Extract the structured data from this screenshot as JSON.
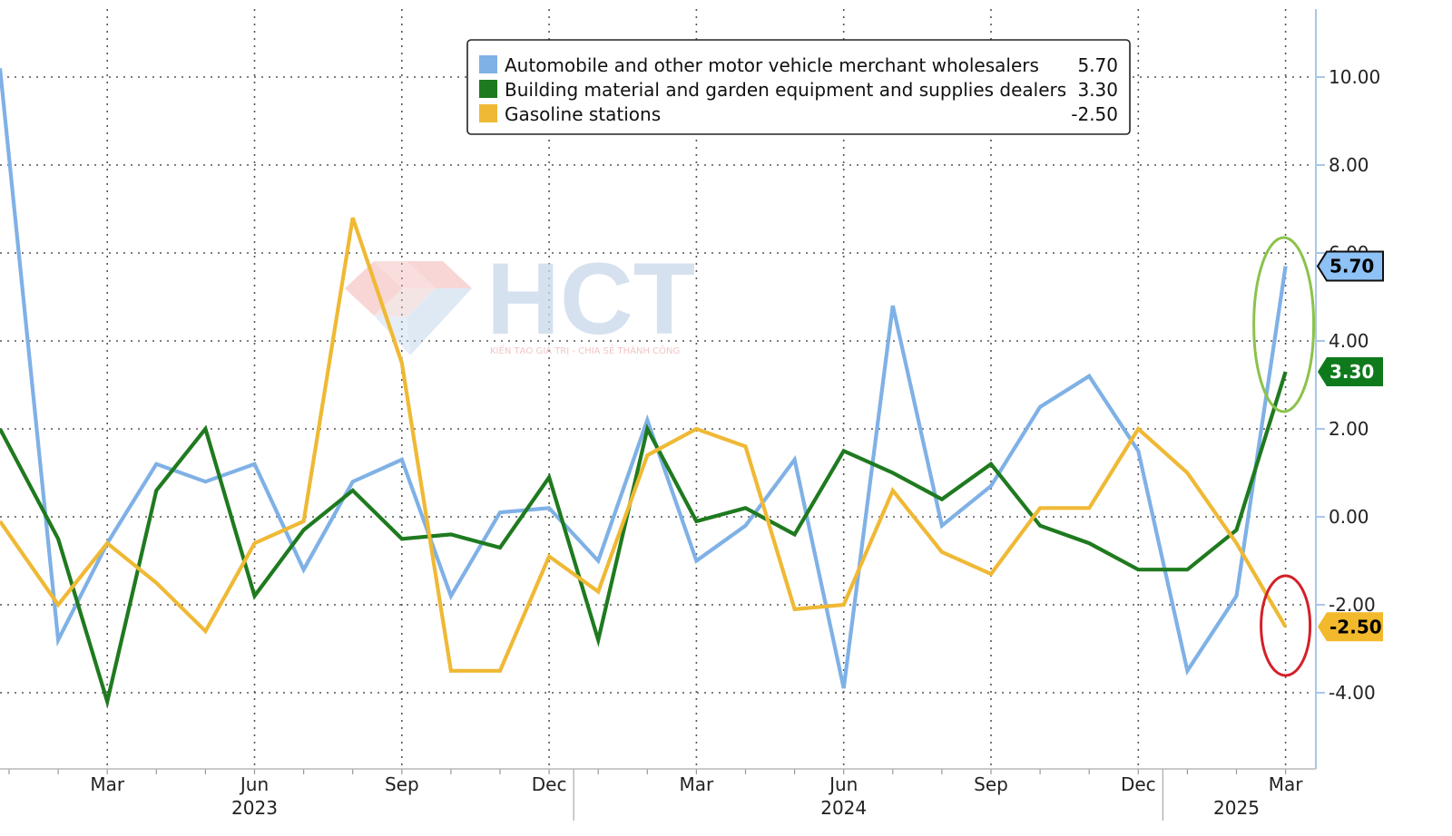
{
  "chart_data": {
    "type": "line",
    "title": "",
    "xlabel": "",
    "ylabel": "",
    "ylim": [
      -5.6,
      11.8
    ],
    "yticks": [
      10,
      8,
      6,
      4,
      2,
      0,
      -2,
      -4
    ],
    "ytick_labels": [
      "10.00",
      "8.00",
      "6.00",
      "4.00",
      "2.00",
      "0.00",
      "-2.00",
      "-4.00"
    ],
    "x_months": [
      "Jan 2023",
      "Feb 2023",
      "Mar 2023",
      "Apr 2023",
      "May 2023",
      "Jun 2023",
      "Jul 2023",
      "Aug 2023",
      "Sep 2023",
      "Oct 2023",
      "Nov 2023",
      "Dec 2023",
      "Jan 2024",
      "Feb 2024",
      "Mar 2024",
      "Apr 2024",
      "May 2024",
      "Jun 2024",
      "Jul 2024",
      "Aug 2024",
      "Sep 2024",
      "Oct 2024",
      "Nov 2024",
      "Dec 2024",
      "Jan 2025",
      "Feb 2025",
      "Mar 2025"
    ],
    "month_ticks": [
      {
        "index": 2,
        "label": "Mar"
      },
      {
        "index": 5,
        "label": "Jun"
      },
      {
        "index": 8,
        "label": "Sep"
      },
      {
        "index": 11,
        "label": "Dec"
      },
      {
        "index": 14,
        "label": "Mar"
      },
      {
        "index": 17,
        "label": "Jun"
      },
      {
        "index": 20,
        "label": "Sep"
      },
      {
        "index": 23,
        "label": "Dec"
      },
      {
        "index": 26,
        "label": "Mar"
      }
    ],
    "year_labels": [
      {
        "label": "2023",
        "center_index": 5
      },
      {
        "label": "2024",
        "center_index": 17
      },
      {
        "label": "2025",
        "center_index": 25
      }
    ],
    "year_dividers": [
      11.5,
      23.5
    ],
    "series": [
      {
        "name": "Automobile and other motor vehicle merchant wholesalers",
        "last_label": "5.70",
        "color": "#7fb1e6",
        "badge_color": "#8ec1f5",
        "badge_text_color": "#000000",
        "start_value": 10.2,
        "values": [
          -2.8,
          -0.6,
          1.2,
          0.8,
          1.2,
          -1.2,
          0.8,
          1.3,
          -1.8,
          0.1,
          0.2,
          -1.0,
          2.2,
          -1.0,
          -0.2,
          1.3,
          -3.9,
          4.8,
          -0.2,
          0.7,
          2.5,
          3.2,
          1.5,
          -3.5,
          -1.8,
          5.7
        ]
      },
      {
        "name": "Building material and garden equipment and supplies dealers",
        "last_label": "3.30",
        "color": "#1f7a1f",
        "badge_color": "#0e7a1c",
        "badge_text_color": "#ffffff",
        "start_value": 2.0,
        "values": [
          -0.5,
          -4.2,
          0.6,
          2.0,
          -1.8,
          -0.3,
          0.6,
          -0.5,
          -0.4,
          -0.7,
          0.9,
          -2.8,
          2.0,
          -0.1,
          0.2,
          -0.4,
          1.5,
          1.0,
          0.4,
          1.2,
          -0.2,
          -0.6,
          -1.2,
          -1.2,
          -0.3,
          3.3
        ]
      },
      {
        "name": "Gasoline stations",
        "last_label": "-2.50",
        "color": "#efb935",
        "badge_color": "#f3b92c",
        "badge_text_color": "#000000",
        "start_value": -0.1,
        "values": [
          -2.0,
          -0.6,
          -1.5,
          -2.6,
          -0.6,
          -0.1,
          6.8,
          3.5,
          -3.5,
          -3.5,
          -0.9,
          -1.7,
          1.4,
          2.0,
          1.6,
          -2.1,
          -2.0,
          0.6,
          -0.8,
          -1.3,
          0.2,
          0.2,
          2.0,
          1.0,
          -0.6,
          -2.5
        ]
      }
    ],
    "annotations": [
      {
        "type": "ellipse",
        "color": "#8bc34a",
        "around": "Mar 2025 top values"
      },
      {
        "type": "ellipse",
        "color": "#d32027",
        "around": "Mar 2025 bottom value"
      }
    ]
  },
  "legend": {
    "placement": "top-center",
    "entries": [
      {
        "label": "Automobile and other motor vehicle merchant wholesalers",
        "value": "5.70",
        "color": "#7fb1e6"
      },
      {
        "label": "Building material and garden equipment and supplies dealers",
        "value": "3.30",
        "color": "#1e7a1e"
      },
      {
        "label": "Gasoline stations",
        "value": "-2.50",
        "color": "#efb935"
      }
    ]
  },
  "watermark": {
    "brand": "HCT",
    "tagline": "KIẾN TẠO GIÁ TRỊ - CHIA SẺ THÀNH CÔNG",
    "color": "#c9d8ea"
  }
}
